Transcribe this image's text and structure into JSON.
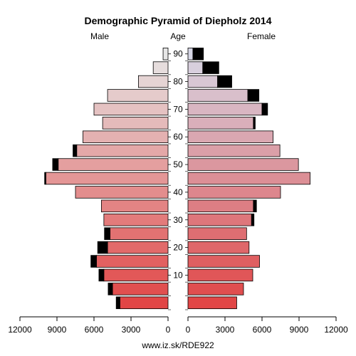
{
  "chart_data": {
    "type": "bar",
    "title": "Demographic Pyramid of Diepholz 2014",
    "left_label": "Male",
    "center_label": "Age",
    "right_label": "Female",
    "footer": "www.iz.sk/RDE922",
    "x_ticks": [
      "0",
      "3000",
      "6000",
      "9000",
      "12000"
    ],
    "x_tick_values": [
      0,
      3000,
      6000,
      9000,
      12000
    ],
    "xlim": [
      0,
      12000
    ],
    "age_ticks": [
      "10",
      "20",
      "30",
      "40",
      "50",
      "60",
      "70",
      "80",
      "90"
    ],
    "age_tick_values": [
      10,
      20,
      30,
      40,
      50,
      60,
      70,
      80,
      90
    ],
    "age_groups": [
      0,
      5,
      10,
      15,
      20,
      25,
      30,
      35,
      40,
      45,
      50,
      55,
      60,
      65,
      70,
      75,
      80,
      85,
      90
    ],
    "series": [
      {
        "name": "Male",
        "values": [
          3900,
          4500,
          5200,
          5800,
          4900,
          4700,
          5200,
          5400,
          7500,
          9900,
          8900,
          7400,
          6900,
          5300,
          6000,
          4900,
          2400,
          1200,
          400
        ],
        "surplus": [
          300,
          350,
          400,
          450,
          800,
          450,
          0,
          0,
          0,
          100,
          450,
          300,
          0,
          0,
          0,
          0,
          0,
          0,
          0
        ]
      },
      {
        "name": "Female",
        "values": [
          3950,
          4500,
          5250,
          5800,
          4950,
          4750,
          5150,
          5300,
          7500,
          9900,
          8950,
          7450,
          6900,
          5300,
          6000,
          4850,
          2400,
          1200,
          400
        ],
        "surplus": [
          0,
          0,
          0,
          0,
          0,
          0,
          200,
          250,
          0,
          0,
          0,
          0,
          0,
          150,
          450,
          900,
          1150,
          1300,
          850
        ]
      }
    ]
  }
}
